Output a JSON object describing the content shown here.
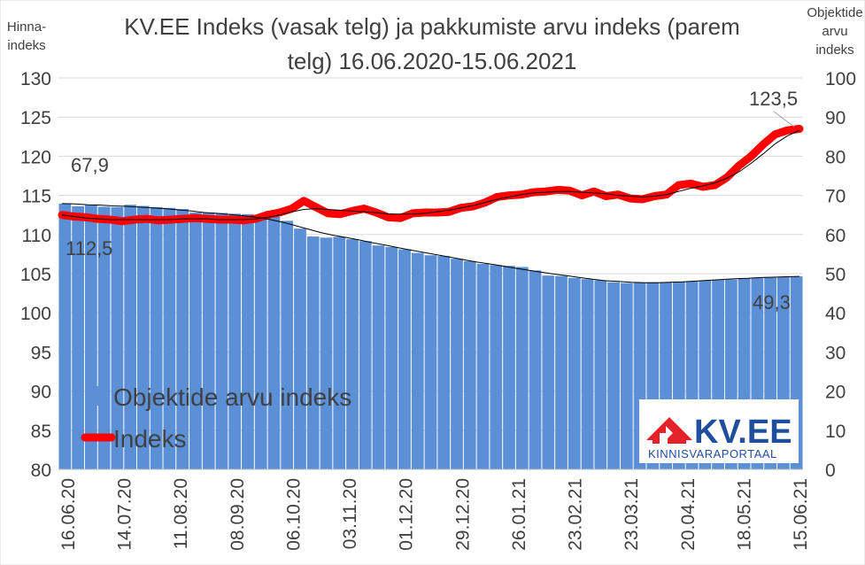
{
  "title_line1": "KV.EE Indeks (vasak telg) ja pakkumiste arvu indeks (parem",
  "title_line2": "telg) 16.06.2020-15.06.2021",
  "left_axis_label": [
    "Hinna-",
    "indeks"
  ],
  "right_axis_label": [
    "Objektide",
    "arvu",
    "indeks"
  ],
  "legend": {
    "bars": "Objektide arvu indeks",
    "line": "Indeks"
  },
  "logo": {
    "brand": "KV.EE",
    "tagline": "KINNISVARAPORTAAL"
  },
  "annotations": {
    "bar_start": "67,9",
    "line_start": "112,5",
    "line_end": "123,5",
    "bar_end": "49,3"
  },
  "colors": {
    "bars": "#5b8fd6",
    "line": "#ff0000",
    "trend": "#000000",
    "logo_red": "#e3222c",
    "logo_blue": "#1f4e9c"
  },
  "chart_data": {
    "type": "bar",
    "x_tick_labels": [
      "16.06.20",
      "14.07.20",
      "11.08.20",
      "08.09.20",
      "06.10.20",
      "03.11.20",
      "01.12.20",
      "29.12.20",
      "26.01.21",
      "23.02.21",
      "23.03.21",
      "20.04.21",
      "18.05.21",
      "15.06.21"
    ],
    "left_axis": {
      "min": 80,
      "max": 130,
      "ticks": [
        80,
        85,
        90,
        95,
        100,
        105,
        110,
        115,
        120,
        125,
        130
      ]
    },
    "right_axis": {
      "min": 0,
      "max": 100,
      "ticks": [
        0,
        10,
        20,
        30,
        40,
        50,
        60,
        70,
        80,
        90,
        100
      ]
    },
    "series": [
      {
        "name": "Objektide arvu indeks",
        "axis": "right",
        "type": "bar",
        "values": [
          67.9,
          67.2,
          67.5,
          67.1,
          67.0,
          67.6,
          67.3,
          67.0,
          66.8,
          66.5,
          65.6,
          65.6,
          65.5,
          65.3,
          65.2,
          65.0,
          64.5,
          63.5,
          61.5,
          59.5,
          59.2,
          59.4,
          58.8,
          58.3,
          57.2,
          56.8,
          56.2,
          55.3,
          54.7,
          54.5,
          53.8,
          53.2,
          52.5,
          52.2,
          52.0,
          51.7,
          50.8,
          49.5,
          49.4,
          48.9,
          48.6,
          48.3,
          47.8,
          47.6,
          47.7,
          47.8,
          47.8,
          47.9,
          48.0,
          48.2,
          48.4,
          48.5,
          48.8,
          48.9,
          49.1,
          49.2,
          49.3
        ]
      },
      {
        "name": "Indeks",
        "axis": "left",
        "type": "line",
        "values": [
          112.5,
          112.3,
          112.2,
          112.0,
          111.9,
          111.7,
          111.9,
          112.0,
          111.8,
          111.9,
          112.0,
          112.1,
          112.0,
          111.9,
          111.9,
          111.8,
          112.0,
          112.5,
          112.8,
          113.3,
          114.3,
          113.5,
          112.7,
          112.6,
          113.0,
          113.3,
          112.8,
          112.2,
          112.1,
          112.7,
          112.8,
          112.8,
          112.9,
          113.4,
          113.6,
          114.1,
          114.8,
          115.0,
          115.1,
          115.4,
          115.5,
          115.7,
          115.6,
          115.0,
          115.5,
          114.9,
          115.1,
          114.6,
          114.5,
          114.9,
          115.1,
          116.3,
          116.5,
          116.1,
          116.3,
          117.3,
          118.8,
          120.0,
          121.5,
          122.8,
          123.3,
          123.5
        ]
      },
      {
        "name": "",
        "axis": "left",
        "type": "trend",
        "values": [
          112.5,
          112.3,
          112.1,
          112.0,
          111.9,
          111.9,
          111.9,
          111.9,
          111.9,
          111.9,
          112.0,
          112.0,
          112.0,
          111.9,
          111.9,
          111.9,
          112.0,
          112.2,
          112.5,
          112.9,
          113.2,
          113.3,
          113.2,
          113.1,
          113.0,
          112.9,
          112.8,
          112.6,
          112.6,
          112.6,
          112.7,
          112.9,
          113.1,
          113.4,
          113.7,
          114.1,
          114.5,
          114.8,
          115.1,
          115.3,
          115.4,
          115.5,
          115.5,
          115.4,
          115.3,
          115.2,
          115.0,
          114.9,
          114.8,
          114.9,
          115.1,
          115.5,
          115.9,
          116.2,
          116.6,
          117.2,
          118.0,
          119.1,
          120.3,
          121.6,
          122.6,
          123.3
        ]
      },
      {
        "name": "",
        "axis": "right",
        "type": "trend",
        "values": [
          67.9,
          67.8,
          67.6,
          67.5,
          67.3,
          67.2,
          67.0,
          66.8,
          66.6,
          66.3,
          66.0,
          65.6,
          65.4,
          65.1,
          64.8,
          64.4,
          63.9,
          63.2,
          62.3,
          61.4,
          60.5,
          59.8,
          59.2,
          58.6,
          57.9,
          57.3,
          56.6,
          56.0,
          55.4,
          54.8,
          54.2,
          53.6,
          53.0,
          52.5,
          52.0,
          51.4,
          50.9,
          50.4,
          49.9,
          49.5,
          49.0,
          48.6,
          48.2,
          48.0,
          47.8,
          47.7,
          47.7,
          47.8,
          47.9,
          48.1,
          48.3,
          48.5,
          48.7,
          48.8,
          49.0,
          49.1,
          49.2,
          49.3
        ]
      }
    ]
  }
}
